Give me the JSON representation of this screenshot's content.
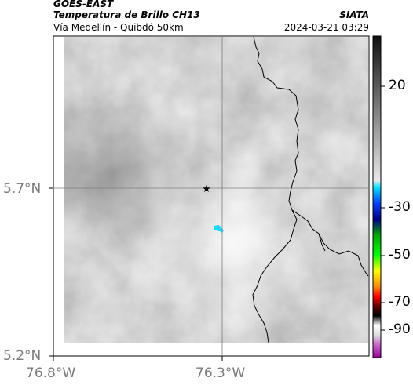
{
  "header": {
    "satellite": "GOES-EAST",
    "product": "Temperatura de Brillo CH13",
    "location": "Vía Medellín - Quibdó 50km",
    "organization": "SIATA",
    "datetime": "2024-03-21 03:29"
  },
  "axes": {
    "lat_labels": [
      "5.7°N",
      "5.2°N"
    ],
    "lon_labels": [
      "76.8°W",
      "76.3°W"
    ]
  },
  "colorbar": {
    "tick_labels": [
      "20",
      "-30",
      "-50",
      "-70",
      "-90"
    ],
    "colors": [
      "#1a1a1a",
      "#d8d8d8",
      "#00e5ff",
      "#0000aa",
      "#00cc00",
      "#ffff00",
      "#ff6600",
      "#aa0000",
      "#000000",
      "#cc66cc"
    ]
  },
  "map": {
    "marker_icon": "star-icon",
    "basemap_color": "#9a9a9a",
    "border_color": "#000000",
    "cold_cloud_color": "#19d9ff"
  }
}
